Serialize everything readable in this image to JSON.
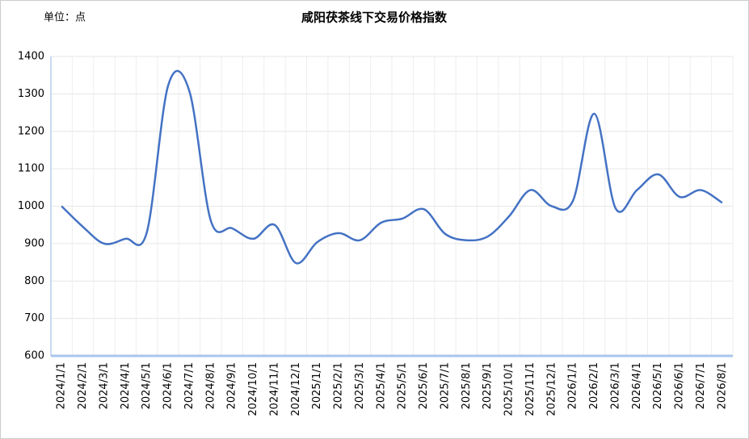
{
  "chart_data": {
    "type": "line",
    "title": "咸阳茯茶线下交易价格指数",
    "unit": "单位：点",
    "categories": [
      "2024/1/1",
      "2024/2/1",
      "2024/3/1",
      "2024/4/1",
      "2024/5/1",
      "2024/6/1",
      "2024/7/1",
      "2024/8/1",
      "2024/9/1",
      "2024/10/1",
      "2024/11/1",
      "2024/12/1",
      "2025/1/1",
      "2025/2/1",
      "2025/3/1",
      "2025/4/1",
      "2025/5/1",
      "2025/6/1",
      "2025/7/1",
      "2025/8/1",
      "2025/9/1",
      "2025/10/1",
      "2025/11/1",
      "2025/12/1",
      "2026/1/1",
      "2026/2/1",
      "2026/3/1",
      "2026/4/1",
      "2026/5/1",
      "2026/6/1",
      "2026/7/1",
      "2026/8/1"
    ],
    "values": [
      1000,
      945,
      900,
      913,
      930,
      1322,
      1307,
      962,
      941,
      913,
      950,
      848,
      904,
      928,
      909,
      956,
      967,
      992,
      926,
      909,
      919,
      973,
      1043,
      1000,
      1015,
      1247,
      994,
      1043,
      1085,
      1025,
      1043,
      1009
    ],
    "color": "#4472c4",
    "ylim": [
      600,
      1400
    ],
    "yticks": [
      600,
      700,
      800,
      900,
      1000,
      1100,
      1200,
      1300,
      1400
    ],
    "grid": true
  }
}
